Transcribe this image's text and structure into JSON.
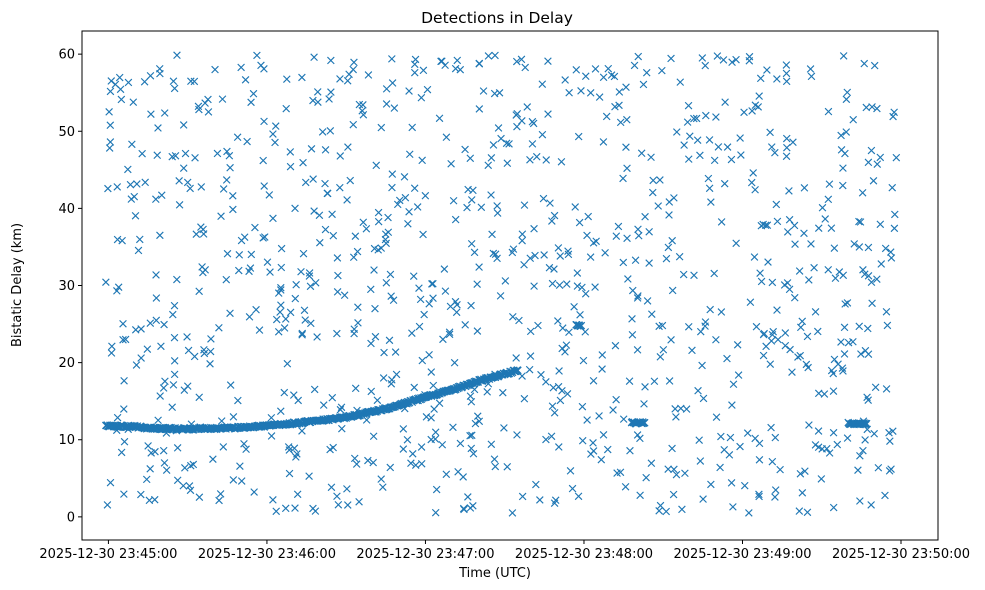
{
  "chart_data": {
    "type": "scatter",
    "title": "Detections in Delay",
    "xlabel": "Time (UTC)",
    "ylabel": "Bistatic Delay (km)",
    "marker": "x",
    "color": "#1f77b4",
    "grid": false,
    "xlim": [
      "2025-12-30 23:44:50",
      "2025-12-30 23:50:14"
    ],
    "ylim": [
      -3,
      63
    ],
    "xticks": [
      "2025-12-30 23:45:00",
      "2025-12-30 23:46:00",
      "2025-12-30 23:47:00",
      "2025-12-30 23:48:00",
      "2025-12-30 23:49:00",
      "2025-12-30 23:50:00"
    ],
    "yticks": [
      0,
      10,
      20,
      30,
      40,
      50,
      60
    ],
    "time_range": [
      "2025-12-30 23:44:59",
      "2025-12-30 23:49:59"
    ],
    "points_per_second": 4,
    "tracks": [
      {
        "x": [
          "2025-12-30 23:44:59",
          "2025-12-30 23:45:10",
          "2025-12-30 23:45:15",
          "2025-12-30 23:45:30",
          "2025-12-30 23:45:45",
          "2025-12-30 23:46:00",
          "2025-12-30 23:46:15",
          "2025-12-30 23:46:30",
          "2025-12-30 23:46:45",
          "2025-12-30 23:47:00",
          "2025-12-30 23:47:15",
          "2025-12-30 23:47:20",
          "2025-12-30 23:47:35"
        ],
        "y": [
          11.8,
          11.7,
          11.5,
          11.4,
          11.5,
          11.8,
          12.3,
          12.9,
          14.0,
          15.5,
          17.0,
          17.6,
          19.0
        ]
      },
      {
        "x": [
          "2025-12-30 23:47:57",
          "2025-12-30 23:47:59"
        ],
        "y": [
          24.8,
          24.8
        ]
      },
      {
        "x": [
          "2025-12-30 23:48:18",
          "2025-12-30 23:48:23"
        ],
        "y": [
          12.2,
          12.2
        ]
      },
      {
        "x": [
          "2025-12-30 23:49:40",
          "2025-12-30 23:49:47"
        ],
        "y": [
          12.1,
          12.1
        ]
      }
    ],
    "noise": {
      "count": 1000,
      "y_range": [
        0.5,
        60
      ]
    }
  }
}
